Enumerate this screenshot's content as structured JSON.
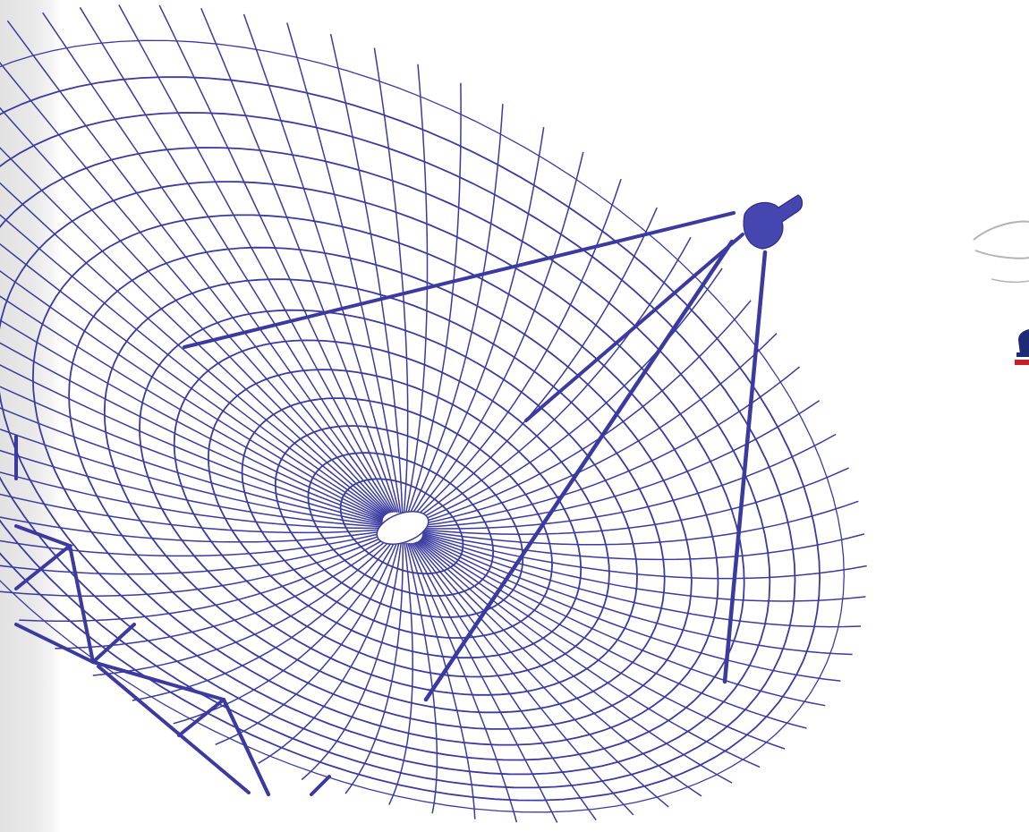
{
  "illustration": {
    "subject": "satellite-dish-wireframe",
    "line_color": "#3a3aa0",
    "feed_color": "#4646b0",
    "band_color": "#e6e6e6",
    "logo_red": "#c8202a",
    "logo_navy": "#1e2a78",
    "logo_swoosh": "#b4b4b4",
    "icons": [
      "satellite-dish-icon",
      "feed-horn-icon",
      "partial-logo-icon"
    ]
  }
}
